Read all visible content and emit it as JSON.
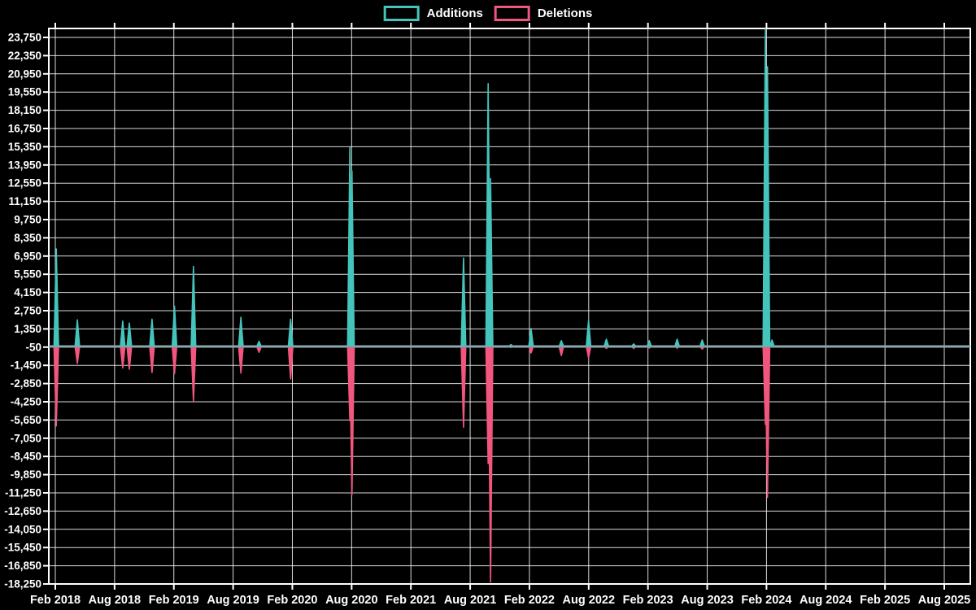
{
  "chart_data": {
    "type": "line",
    "description": "Weekly code additions and deletions frequency chart",
    "legend": [
      "Additions",
      "Deletions"
    ],
    "colors": {
      "additions": "#45c4bb",
      "deletions": "#f1577e",
      "baseline": "#8ca6b0",
      "grid": "#ffffff",
      "text": "#ffffff",
      "background": "#000000"
    },
    "y_axis": {
      "max": 23750,
      "min": -18250,
      "step": 1400,
      "ticks": [
        "23,750",
        "22,350",
        "20,950",
        "19,550",
        "18,150",
        "16,750",
        "15,350",
        "13,950",
        "12,550",
        "11,150",
        "9,750",
        "8,350",
        "6,950",
        "5,550",
        "4,150",
        "2,750",
        "1,350",
        "-50",
        "-1,450",
        "-2,850",
        "-4,250",
        "-5,650",
        "-7,050",
        "-8,450",
        "-9,850",
        "-11,250",
        "-12,650",
        "-14,050",
        "-15,450",
        "-16,850",
        "-18,250"
      ]
    },
    "x_axis": {
      "ticks": [
        "Feb 2018",
        "Aug 2018",
        "Feb 2019",
        "Aug 2019",
        "Feb 2020",
        "Aug 2020",
        "Feb 2021",
        "Aug 2021",
        "Feb 2022",
        "Aug 2022",
        "Feb 2023",
        "Aug 2023",
        "Feb 2024",
        "Aug 2024",
        "Feb 2025",
        "Aug 2025"
      ]
    },
    "points": [
      {
        "date": "2018-02-04",
        "additions": 7500,
        "deletions": -6100
      },
      {
        "date": "2018-04-08",
        "additions": 2050,
        "deletions": -1300
      },
      {
        "date": "2018-08-26",
        "additions": 1950,
        "deletions": -1650
      },
      {
        "date": "2018-09-16",
        "additions": 1800,
        "deletions": -1750
      },
      {
        "date": "2018-11-25",
        "additions": 2100,
        "deletions": -2000
      },
      {
        "date": "2019-02-03",
        "additions": 3100,
        "deletions": -2100
      },
      {
        "date": "2019-03-31",
        "additions": 6150,
        "deletions": -4200
      },
      {
        "date": "2019-08-25",
        "additions": 2250,
        "deletions": -2050
      },
      {
        "date": "2019-10-20",
        "additions": 400,
        "deletions": -450
      },
      {
        "date": "2020-01-26",
        "additions": 2100,
        "deletions": -2500
      },
      {
        "date": "2020-07-26",
        "additions": 15300,
        "deletions": -5700
      },
      {
        "date": "2020-08-02",
        "additions": 13500,
        "deletions": -11400
      },
      {
        "date": "2021-07-11",
        "additions": 6800,
        "deletions": -6200
      },
      {
        "date": "2021-09-26",
        "additions": 20200,
        "deletions": -9000
      },
      {
        "date": "2021-10-03",
        "additions": 12900,
        "deletions": -18100
      },
      {
        "date": "2021-12-05",
        "additions": 150,
        "deletions": -80
      },
      {
        "date": "2022-02-06",
        "additions": 1380,
        "deletions": -500
      },
      {
        "date": "2022-05-08",
        "additions": 450,
        "deletions": -700
      },
      {
        "date": "2022-07-31",
        "additions": 2000,
        "deletions": -880
      },
      {
        "date": "2022-09-25",
        "additions": 560,
        "deletions": -150
      },
      {
        "date": "2022-12-18",
        "additions": 200,
        "deletions": -150
      },
      {
        "date": "2023-02-05",
        "additions": 450,
        "deletions": -120
      },
      {
        "date": "2023-04-30",
        "additions": 560,
        "deletions": -130
      },
      {
        "date": "2023-07-16",
        "additions": 500,
        "deletions": -200
      },
      {
        "date": "2024-01-28",
        "additions": 24450,
        "deletions": -6000
      },
      {
        "date": "2024-02-04",
        "additions": 21500,
        "deletions": -11600
      },
      {
        "date": "2024-02-18",
        "additions": 500,
        "deletions": -60
      }
    ]
  }
}
